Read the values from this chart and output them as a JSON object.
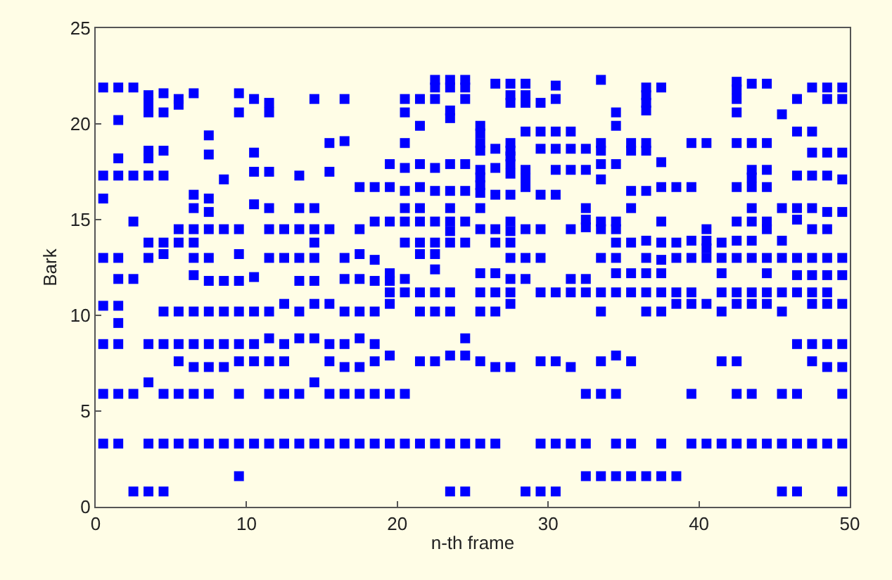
{
  "chart_data": {
    "type": "scatter",
    "xlabel": "n-th frame",
    "ylabel": "Bark",
    "xlim": [
      0,
      50
    ],
    "ylim": [
      0,
      25
    ],
    "xticks": [
      0,
      10,
      20,
      30,
      40,
      50
    ],
    "yticks": [
      0,
      5,
      10,
      15,
      20,
      25
    ],
    "marker": "square",
    "series": [
      {
        "color": "#0000ff",
        "x": [
          0.5,
          0.5,
          0.5,
          0.5,
          0.5,
          0.5,
          0.5,
          0.5,
          1.5,
          1.5,
          1.5,
          1.5,
          1.5,
          1.5,
          1.5,
          1.5,
          1.5,
          1.5,
          1.5,
          2.5,
          2.5,
          2.5,
          2.5,
          2.5,
          2.5,
          3.5,
          3.5,
          3.5,
          3.5,
          3.5,
          3.5,
          3.5,
          3.5,
          3.5,
          3.5,
          3.5,
          3.5,
          4.5,
          4.5,
          4.5,
          4.5,
          4.5,
          4.5,
          4.5,
          4.5,
          4.5,
          4.5,
          4.5,
          5.5,
          5.5,
          5.5,
          5.5,
          5.5,
          5.5,
          5.5,
          5.5,
          5.5,
          6.5,
          6.5,
          6.5,
          6.5,
          6.5,
          6.5,
          6.5,
          6.5,
          6.5,
          6.5,
          6.5,
          6.5,
          7.5,
          7.5,
          7.5,
          7.5,
          7.5,
          7.5,
          7.5,
          7.5,
          7.5,
          7.5,
          7.5,
          7.5,
          8.5,
          8.5,
          8.5,
          8.5,
          8.5,
          8.5,
          8.5,
          9.5,
          9.5,
          9.5,
          9.5,
          9.5,
          9.5,
          9.5,
          9.5,
          9.5,
          9.5,
          9.5,
          10.5,
          10.5,
          10.5,
          10.5,
          10.5,
          10.5,
          10.5,
          10.5,
          10.5,
          11.5,
          11.5,
          11.5,
          11.5,
          11.5,
          11.5,
          11.5,
          11.5,
          11.5,
          11.5,
          11.5,
          12.5,
          12.5,
          12.5,
          12.5,
          12.5,
          12.5,
          12.5,
          13.5,
          13.5,
          13.5,
          13.5,
          13.5,
          13.5,
          13.5,
          13.5,
          13.5,
          14.5,
          14.5,
          14.5,
          14.5,
          14.5,
          14.5,
          14.5,
          14.5,
          14.5,
          14.5,
          15.5,
          15.5,
          15.5,
          15.5,
          15.5,
          15.5,
          15.5,
          15.5,
          16.5,
          16.5,
          16.5,
          16.5,
          16.5,
          16.5,
          16.5,
          16.5,
          16.5,
          17.5,
          17.5,
          17.5,
          17.5,
          17.5,
          17.5,
          17.5,
          17.5,
          17.5,
          18.5,
          18.5,
          18.5,
          18.5,
          18.5,
          18.5,
          18.5,
          18.5,
          18.5,
          19.5,
          19.5,
          19.5,
          19.5,
          19.5,
          19.5,
          19.5,
          19.5,
          19.5,
          19.5,
          20.5,
          20.5,
          20.5,
          20.5,
          20.5,
          20.5,
          20.5,
          20.5,
          20.5,
          20.5,
          20.5,
          20.5,
          21.5,
          21.5,
          21.5,
          21.5,
          21.5,
          21.5,
          21.5,
          21.5,
          21.5,
          21.5,
          21.5,
          21.5,
          22.5,
          22.5,
          22.5,
          22.5,
          22.5,
          22.5,
          22.5,
          22.5,
          22.5,
          22.5,
          22.5,
          22.5,
          22.5,
          23.5,
          23.5,
          23.5,
          23.5,
          23.5,
          23.5,
          23.5,
          23.5,
          23.5,
          23.5,
          23.5,
          23.5,
          23.5,
          23.5,
          23.5,
          24.5,
          24.5,
          24.5,
          24.5,
          24.5,
          24.5,
          24.5,
          24.5,
          24.5,
          24.5,
          24.5,
          25.5,
          25.5,
          25.5,
          25.5,
          25.5,
          25.5,
          25.5,
          25.5,
          25.5,
          25.5,
          25.5,
          25.5,
          25.5,
          25.5,
          25.5,
          26.5,
          26.5,
          26.5,
          26.5,
          26.5,
          26.5,
          26.5,
          26.5,
          26.5,
          26.5,
          26.5,
          27.5,
          27.5,
          27.5,
          27.5,
          27.5,
          27.5,
          27.5,
          27.5,
          27.5,
          27.5,
          27.5,
          27.5,
          27.5,
          27.5,
          27.5,
          27.5,
          27.5,
          28.5,
          28.5,
          28.5,
          28.5,
          28.5,
          28.5,
          28.5,
          28.5,
          28.5,
          28.5,
          28.5,
          29.5,
          29.5,
          29.5,
          29.5,
          29.5,
          29.5,
          29.5,
          29.5,
          29.5,
          29.5,
          30.5,
          30.5,
          30.5,
          30.5,
          30.5,
          30.5,
          30.5,
          30.5,
          30.5,
          30.5,
          31.5,
          31.5,
          31.5,
          31.5,
          31.5,
          31.5,
          31.5,
          31.5,
          32.5,
          32.5,
          32.5,
          32.5,
          32.5,
          32.5,
          32.5,
          32.5,
          32.5,
          32.5,
          33.5,
          33.5,
          33.5,
          33.5,
          33.5,
          33.5,
          33.5,
          33.5,
          33.5,
          33.5,
          33.5,
          33.5,
          33.5,
          34.5,
          34.5,
          34.5,
          34.5,
          34.5,
          34.5,
          34.5,
          34.5,
          34.5,
          34.5,
          34.5,
          34.5,
          34.5,
          35.5,
          35.5,
          35.5,
          35.5,
          35.5,
          35.5,
          35.5,
          35.5,
          35.5,
          35.5,
          36.5,
          36.5,
          36.5,
          36.5,
          36.5,
          36.5,
          36.5,
          36.5,
          36.5,
          36.5,
          36.5,
          36.5,
          36.5,
          37.5,
          37.5,
          37.5,
          37.5,
          37.5,
          37.5,
          37.5,
          37.5,
          37.5,
          37.5,
          37.5,
          38.5,
          38.5,
          38.5,
          38.5,
          38.5,
          38.5,
          39.5,
          39.5,
          39.5,
          39.5,
          39.5,
          39.5,
          39.5,
          39.5,
          40.5,
          40.5,
          40.5,
          40.5,
          40.5,
          40.5,
          40.5,
          41.5,
          41.5,
          41.5,
          41.5,
          41.5,
          41.5,
          41.5,
          42.5,
          42.5,
          42.5,
          42.5,
          42.5,
          42.5,
          42.5,
          42.5,
          42.5,
          42.5,
          42.5,
          42.5,
          42.5,
          42.5,
          43.5,
          43.5,
          43.5,
          43.5,
          43.5,
          43.5,
          43.5,
          43.5,
          43.5,
          43.5,
          43.5,
          43.5,
          43.5,
          44.5,
          44.5,
          44.5,
          44.5,
          44.5,
          44.5,
          44.5,
          44.5,
          44.5,
          44.5,
          44.5,
          45.5,
          45.5,
          45.5,
          45.5,
          45.5,
          45.5,
          45.5,
          45.5,
          45.5,
          46.5,
          46.5,
          46.5,
          46.5,
          46.5,
          46.5,
          46.5,
          46.5,
          46.5,
          46.5,
          46.5,
          46.5,
          47.5,
          47.5,
          47.5,
          47.5,
          47.5,
          47.5,
          47.5,
          47.5,
          47.5,
          47.5,
          47.5,
          47.5,
          47.5,
          48.5,
          48.5,
          48.5,
          48.5,
          48.5,
          48.5,
          48.5,
          48.5,
          48.5,
          48.5,
          48.5,
          48.5,
          48.5,
          49.5,
          49.5,
          49.5,
          49.5,
          49.5,
          49.5,
          49.5,
          49.5,
          49.5,
          49.5,
          49.5,
          49.5,
          49.5
        ],
        "values": [
          21.9,
          17.3,
          16.1,
          13.0,
          10.5,
          8.5,
          5.9,
          3.3,
          21.9,
          20.2,
          18.2,
          17.3,
          13.0,
          11.9,
          10.5,
          9.6,
          8.5,
          5.9,
          3.3,
          21.9,
          17.3,
          14.9,
          11.9,
          5.9,
          0.8,
          21.5,
          21.1,
          20.6,
          18.6,
          18.2,
          17.3,
          13.8,
          13.0,
          8.5,
          6.5,
          3.3,
          0.8,
          21.6,
          20.6,
          18.6,
          17.3,
          13.8,
          13.2,
          10.2,
          8.5,
          5.9,
          3.3,
          0.8,
          21.3,
          21.0,
          14.5,
          13.8,
          10.2,
          8.5,
          7.6,
          5.9,
          3.3,
          21.6,
          16.3,
          15.6,
          14.5,
          13.8,
          13.0,
          12.1,
          10.2,
          8.5,
          7.3,
          5.9,
          3.3,
          19.4,
          18.4,
          16.1,
          15.4,
          14.5,
          13.0,
          11.8,
          10.2,
          8.5,
          7.3,
          5.9,
          3.3,
          17.1,
          14.5,
          11.8,
          10.2,
          8.5,
          7.3,
          3.3,
          21.6,
          20.6,
          14.5,
          13.2,
          11.8,
          10.2,
          8.5,
          7.6,
          5.9,
          3.3,
          1.6,
          21.3,
          18.5,
          17.5,
          15.8,
          12.0,
          10.2,
          8.5,
          7.6,
          3.3,
          21.1,
          20.6,
          17.5,
          15.6,
          14.5,
          13.0,
          10.2,
          8.8,
          7.6,
          5.9,
          3.3,
          14.5,
          13.0,
          10.6,
          8.5,
          7.6,
          5.9,
          3.3,
          17.3,
          15.6,
          14.5,
          13.0,
          11.8,
          10.2,
          8.8,
          5.9,
          3.3,
          21.3,
          15.6,
          14.5,
          13.8,
          13.0,
          11.8,
          10.6,
          8.8,
          6.5,
          3.3,
          19.0,
          17.5,
          14.5,
          10.6,
          8.5,
          7.6,
          5.9,
          3.3,
          21.3,
          19.1,
          13.0,
          11.9,
          10.2,
          8.5,
          7.3,
          5.9,
          3.3,
          16.7,
          14.5,
          13.2,
          11.9,
          10.2,
          8.8,
          7.3,
          5.9,
          3.3,
          16.7,
          14.9,
          12.9,
          11.8,
          10.2,
          8.5,
          7.6,
          5.9,
          3.3,
          17.9,
          16.7,
          14.9,
          12.2,
          11.8,
          11.2,
          10.6,
          7.9,
          5.9,
          3.3,
          21.3,
          20.6,
          19.0,
          17.7,
          16.5,
          15.6,
          14.9,
          13.8,
          11.9,
          11.2,
          5.9,
          3.3,
          21.3,
          19.9,
          17.9,
          16.7,
          15.6,
          14.9,
          13.8,
          13.2,
          11.2,
          10.2,
          7.6,
          3.3,
          22.3,
          21.9,
          21.3,
          17.7,
          16.5,
          14.9,
          13.8,
          13.2,
          12.4,
          11.2,
          10.2,
          7.6,
          3.3,
          22.3,
          21.9,
          20.7,
          20.3,
          17.9,
          16.5,
          15.6,
          14.9,
          14.4,
          13.8,
          11.2,
          10.2,
          7.9,
          3.3,
          0.8,
          22.3,
          21.9,
          21.3,
          17.9,
          16.5,
          14.9,
          13.8,
          8.8,
          7.9,
          3.3,
          0.8,
          19.9,
          19.5,
          19.0,
          18.6,
          17.6,
          17.2,
          16.8,
          16.4,
          15.6,
          14.5,
          12.2,
          11.2,
          10.2,
          7.6,
          3.3,
          22.1,
          18.7,
          17.7,
          16.3,
          14.5,
          13.8,
          12.2,
          11.2,
          10.2,
          7.3,
          3.3,
          22.1,
          21.5,
          21.1,
          19.0,
          18.6,
          18.3,
          17.9,
          17.4,
          16.3,
          14.9,
          14.4,
          13.8,
          13.0,
          11.9,
          11.2,
          10.6,
          7.3,
          22.1,
          21.5,
          21.1,
          19.6,
          17.6,
          17.2,
          16.7,
          14.5,
          13.0,
          11.9,
          0.8,
          21.1,
          19.6,
          18.7,
          16.3,
          14.5,
          13.0,
          11.2,
          7.6,
          3.3,
          0.8,
          22.0,
          21.3,
          19.6,
          18.7,
          17.6,
          16.3,
          11.2,
          7.6,
          3.3,
          0.8,
          19.6,
          18.7,
          17.6,
          14.5,
          11.9,
          11.2,
          7.3,
          3.3,
          18.7,
          17.6,
          15.6,
          15.0,
          14.6,
          11.9,
          11.2,
          5.9,
          3.3,
          1.6,
          22.3,
          19.0,
          18.6,
          17.9,
          17.1,
          14.9,
          14.5,
          13.0,
          11.2,
          10.2,
          7.6,
          5.9,
          1.6,
          20.6,
          19.9,
          17.9,
          14.9,
          14.5,
          13.8,
          13.0,
          12.2,
          11.2,
          7.9,
          5.9,
          3.3,
          1.6,
          19.0,
          18.6,
          16.5,
          15.6,
          13.8,
          12.2,
          11.2,
          7.6,
          3.3,
          1.6,
          21.9,
          21.5,
          21.1,
          20.7,
          19.0,
          18.6,
          16.5,
          13.9,
          13.0,
          12.2,
          11.2,
          10.2,
          1.6,
          21.9,
          18.0,
          16.7,
          14.9,
          13.8,
          12.9,
          12.2,
          11.2,
          10.2,
          3.3,
          1.6,
          16.7,
          13.8,
          13.0,
          11.2,
          10.6,
          1.6,
          19.0,
          16.7,
          13.9,
          13.0,
          11.2,
          10.6,
          5.9,
          3.3,
          19.0,
          14.5,
          13.9,
          13.5,
          13.0,
          10.6,
          3.3,
          13.8,
          13.0,
          12.2,
          11.2,
          10.2,
          7.6,
          3.3,
          22.2,
          21.8,
          21.3,
          20.6,
          19.0,
          16.7,
          14.9,
          13.9,
          13.0,
          11.2,
          10.6,
          7.6,
          5.9,
          3.3,
          22.1,
          19.0,
          17.6,
          17.2,
          16.7,
          15.6,
          14.9,
          13.9,
          13.0,
          11.2,
          10.6,
          5.9,
          3.3,
          22.1,
          19.0,
          17.6,
          16.7,
          14.9,
          14.5,
          13.0,
          12.2,
          11.2,
          10.6,
          3.3,
          20.5,
          15.6,
          13.9,
          13.0,
          11.2,
          10.2,
          5.9,
          3.3,
          0.8,
          21.3,
          19.6,
          17.3,
          15.6,
          15.0,
          13.0,
          12.1,
          11.2,
          8.5,
          5.9,
          3.3,
          0.8,
          21.9,
          19.6,
          18.5,
          17.3,
          15.6,
          14.5,
          13.0,
          12.1,
          11.2,
          10.6,
          8.5,
          7.6,
          3.3,
          21.9,
          21.3,
          18.5,
          17.3,
          15.4,
          14.5,
          13.0,
          12.1,
          11.2,
          10.6,
          8.5,
          7.3,
          3.3,
          21.9,
          21.3,
          18.5,
          17.1,
          15.4,
          13.0,
          12.1,
          10.6,
          8.5,
          7.3,
          5.9,
          3.3,
          0.8
        ]
      }
    ]
  }
}
